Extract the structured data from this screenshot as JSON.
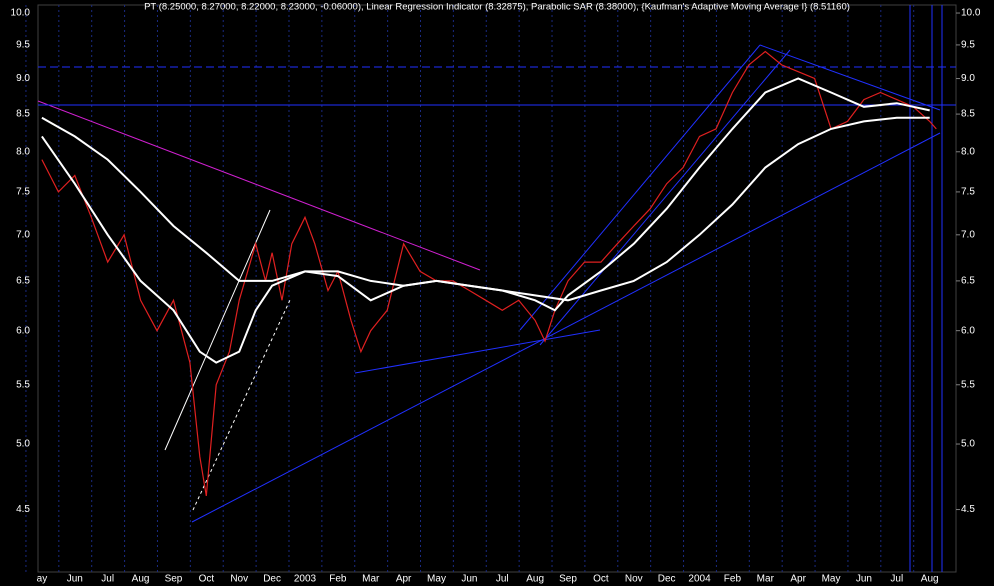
{
  "chart_data": {
    "type": "line",
    "title": "PT (8.25000, 8.27000, 8.22000, 8.23000, -0.06000), Linear Regression Indicator (8.32875), Parabolic SAR (8.38000), {Kaufman's Adaptive Moving Average I} (8.51160)",
    "log_scale": true,
    "ylim": [
      4.07,
      10.13
    ],
    "yticks": [
      {
        "value": 10,
        "label": "10.0"
      },
      9.5,
      {
        "value": 9,
        "label": "9.0"
      },
      8.5,
      {
        "value": 8,
        "label": "8.0"
      },
      7.5,
      {
        "value": 7,
        "label": "7.0"
      },
      6.5,
      {
        "value": 6,
        "label": "6.0"
      },
      5.5,
      {
        "value": 5,
        "label": "5.0"
      },
      4.5
    ],
    "xlim": [
      -0.12,
      27.8
    ],
    "xticks": [
      {
        "value": 0,
        "label": "ay"
      },
      {
        "value": 1,
        "label": "Jun"
      },
      {
        "value": 2,
        "label": "Jul"
      },
      {
        "value": 3,
        "label": "Aug"
      },
      {
        "value": 4,
        "label": "Sep"
      },
      {
        "value": 5,
        "label": "Oct"
      },
      {
        "value": 6,
        "label": "Nov"
      },
      {
        "value": 7,
        "label": "Dec"
      },
      {
        "value": 8,
        "label": "2003"
      },
      {
        "value": 9,
        "label": "Feb"
      },
      {
        "value": 10,
        "label": "Mar"
      },
      {
        "value": 11,
        "label": "Apr"
      },
      {
        "value": 12,
        "label": "May"
      },
      {
        "value": 13,
        "label": "Jun"
      },
      {
        "value": 14,
        "label": "Jul"
      },
      {
        "value": 15,
        "label": "Aug"
      },
      {
        "value": 16,
        "label": "Sep"
      },
      {
        "value": 17,
        "label": "Oct"
      },
      {
        "value": 18,
        "label": "Nov"
      },
      {
        "value": 19,
        "label": "Dec"
      },
      {
        "value": 20,
        "label": "2004"
      },
      {
        "value": 21,
        "label": "Feb"
      },
      {
        "value": 22,
        "label": "Mar"
      },
      {
        "value": 23,
        "label": "Apr"
      },
      {
        "value": 24,
        "label": "May"
      },
      {
        "value": 25,
        "label": "Jun"
      },
      {
        "value": 26,
        "label": "Jul"
      },
      {
        "value": 27,
        "label": "Aug"
      }
    ],
    "grid": true,
    "series": [
      {
        "color": "#e02020",
        "x": [
          0,
          0.5,
          1,
          1.5,
          2,
          2.5,
          3,
          3.5,
          4,
          4.5,
          4.8,
          5.0,
          5.3,
          5.7,
          6.0,
          6.5,
          6.8,
          7.0,
          7.3,
          7.6,
          8.0,
          8.3,
          8.7,
          9.0,
          9.4,
          9.7,
          10.0,
          10.5,
          11.0,
          11.5,
          12,
          12.5,
          13,
          13.5,
          14,
          14.5,
          15,
          15.3,
          15.6,
          16,
          16.5,
          17,
          17.5,
          18,
          18.5,
          19,
          19.5,
          20,
          20.5,
          21,
          21.5,
          22,
          22.5,
          23,
          23.5,
          24,
          24.5,
          25,
          25.5,
          26,
          26.5,
          27,
          27.2
        ],
        "values": [
          7.9,
          7.5,
          7.7,
          7.2,
          6.7,
          7.0,
          6.3,
          6.0,
          6.3,
          5.7,
          4.9,
          4.6,
          5.5,
          5.8,
          6.3,
          6.9,
          6.5,
          6.8,
          6.3,
          6.9,
          7.2,
          6.9,
          6.4,
          6.6,
          6.1,
          5.8,
          6.0,
          6.2,
          6.9,
          6.6,
          6.5,
          6.5,
          6.4,
          6.3,
          6.2,
          6.3,
          6.1,
          5.9,
          6.2,
          6.5,
          6.7,
          6.7,
          6.9,
          7.1,
          7.3,
          7.6,
          7.8,
          8.2,
          8.3,
          8.8,
          9.2,
          9.4,
          9.2,
          9.1,
          9.0,
          8.3,
          8.4,
          8.7,
          8.8,
          8.7,
          8.6,
          8.4,
          8.3
        ]
      },
      {
        "color": "#ffffff",
        "x": [
          0,
          1,
          2,
          3,
          4,
          4.8,
          5.3,
          6,
          6.5,
          7,
          8,
          9,
          10,
          11,
          12,
          13,
          14,
          15,
          15.6,
          16,
          17,
          18,
          19,
          20,
          21,
          22,
          23,
          24,
          25,
          26,
          27
        ],
        "values": [
          8.2,
          7.6,
          7.0,
          6.5,
          6.2,
          5.8,
          5.7,
          5.8,
          6.2,
          6.45,
          6.6,
          6.55,
          6.3,
          6.45,
          6.5,
          6.45,
          6.4,
          6.3,
          6.2,
          6.35,
          6.6,
          6.9,
          7.3,
          7.8,
          8.3,
          8.8,
          9.0,
          8.8,
          8.6,
          8.65,
          8.55
        ]
      },
      {
        "color": "#ffffff",
        "x": [
          0,
          1,
          2,
          3,
          4,
          5,
          6,
          7,
          8,
          9,
          10,
          11,
          12,
          13,
          14,
          15,
          16,
          17,
          18,
          19,
          20,
          21,
          22,
          23,
          24,
          25,
          26,
          27
        ],
        "values": [
          8.45,
          8.2,
          7.9,
          7.5,
          7.1,
          6.8,
          6.5,
          6.5,
          6.6,
          6.6,
          6.5,
          6.45,
          6.5,
          6.45,
          6.4,
          6.35,
          6.3,
          6.4,
          6.5,
          6.7,
          7.0,
          7.35,
          7.8,
          8.1,
          8.3,
          8.4,
          8.45,
          8.45
        ]
      }
    ]
  }
}
